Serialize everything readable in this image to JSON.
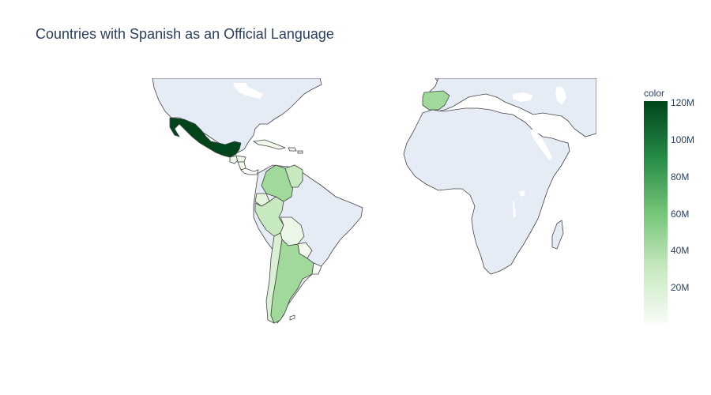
{
  "title": "Countries with Spanish as an Official Language",
  "colorbar": {
    "title": "color",
    "min": 0,
    "max": 120000000,
    "ticks": [
      {
        "label": "120M",
        "value": 120000000
      },
      {
        "label": "100M",
        "value": 100000000
      },
      {
        "label": "80M",
        "value": 80000000
      },
      {
        "label": "60M",
        "value": 60000000
      },
      {
        "label": "40M",
        "value": 40000000
      },
      {
        "label": "20M",
        "value": 20000000
      }
    ],
    "colorscale": [
      "#f7fcf5",
      "#c7e9c0",
      "#74c476",
      "#238b45",
      "#00441b"
    ]
  },
  "map": {
    "projection": "equirectangular",
    "land_color": "#e5ecf6",
    "border_color": "#444444",
    "regions": [
      {
        "name": "Mexico",
        "color": "#00441b"
      },
      {
        "name": "Spain",
        "color": "#a1d99b"
      },
      {
        "name": "Colombia",
        "color": "#a1d99b"
      },
      {
        "name": "Venezuela",
        "color": "#c7e9c0"
      },
      {
        "name": "Peru",
        "color": "#c7e9c0"
      },
      {
        "name": "Ecuador",
        "color": "#e5f5e0"
      },
      {
        "name": "Bolivia",
        "color": "#eaf6e6"
      },
      {
        "name": "Chile",
        "color": "#d9f0d3"
      },
      {
        "name": "Argentina",
        "color": "#a1d99b"
      },
      {
        "name": "Paraguay",
        "color": "#f0f9ec"
      },
      {
        "name": "Uruguay",
        "color": "#f7fcf5"
      },
      {
        "name": "Guatemala",
        "color": "#eaf6e6"
      },
      {
        "name": "Honduras",
        "color": "#f0f9ec"
      },
      {
        "name": "Nicaragua",
        "color": "#f3faf0"
      },
      {
        "name": "Cuba",
        "color": "#f0f9ec"
      },
      {
        "name": "Dominican Republic",
        "color": "#f0f9ec"
      }
    ]
  }
}
